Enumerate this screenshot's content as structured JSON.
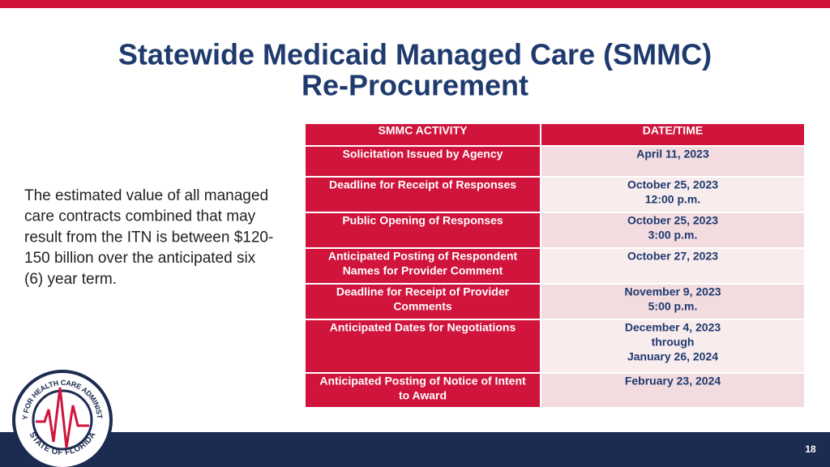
{
  "header": {
    "title_lines": [
      "Statewide Medicaid Managed Care (SMMC)",
      "Re-Procurement"
    ]
  },
  "body": {
    "lines": [
      "The estimated value of all managed",
      "care contracts combined that may",
      "result from the ITN is between $120-",
      "150 billion over the anticipated six",
      "(6) year term."
    ]
  },
  "table": {
    "columns": [
      "SMMC ACTIVITY",
      "DATE/TIME"
    ],
    "rows": [
      [
        [
          "Solicitation Issued by Agency"
        ],
        [
          "April 11, 2023"
        ]
      ],
      [
        [
          "Deadline for Receipt of Responses"
        ],
        [
          "October 25, 2023",
          "12:00 p.m."
        ]
      ],
      [
        [
          "Public Opening of Responses"
        ],
        [
          "October 25, 2023",
          "3:00 p.m."
        ]
      ],
      [
        [
          "Anticipated Posting of Respondent",
          "Names for Provider Comment"
        ],
        [
          "October 27, 2023"
        ]
      ],
      [
        [
          "Deadline for Receipt of Provider",
          "Comments"
        ],
        [
          "November 9, 2023",
          "5:00 p.m."
        ]
      ],
      [
        [
          "Anticipated Dates for Negotiations"
        ],
        [
          "December 4, 2023",
          "through",
          "January 26, 2024"
        ]
      ],
      [
        [
          "Anticipated Posting of Notice of Intent",
          "to Award"
        ],
        [
          "February 23, 2024"
        ]
      ]
    ]
  },
  "logo": {
    "top_text": "AGENCY FOR HEALTH CARE ADMINISTRATION",
    "bottom_text": "STATE OF FLORIDA"
  },
  "footer": {
    "page_number": "18"
  }
}
